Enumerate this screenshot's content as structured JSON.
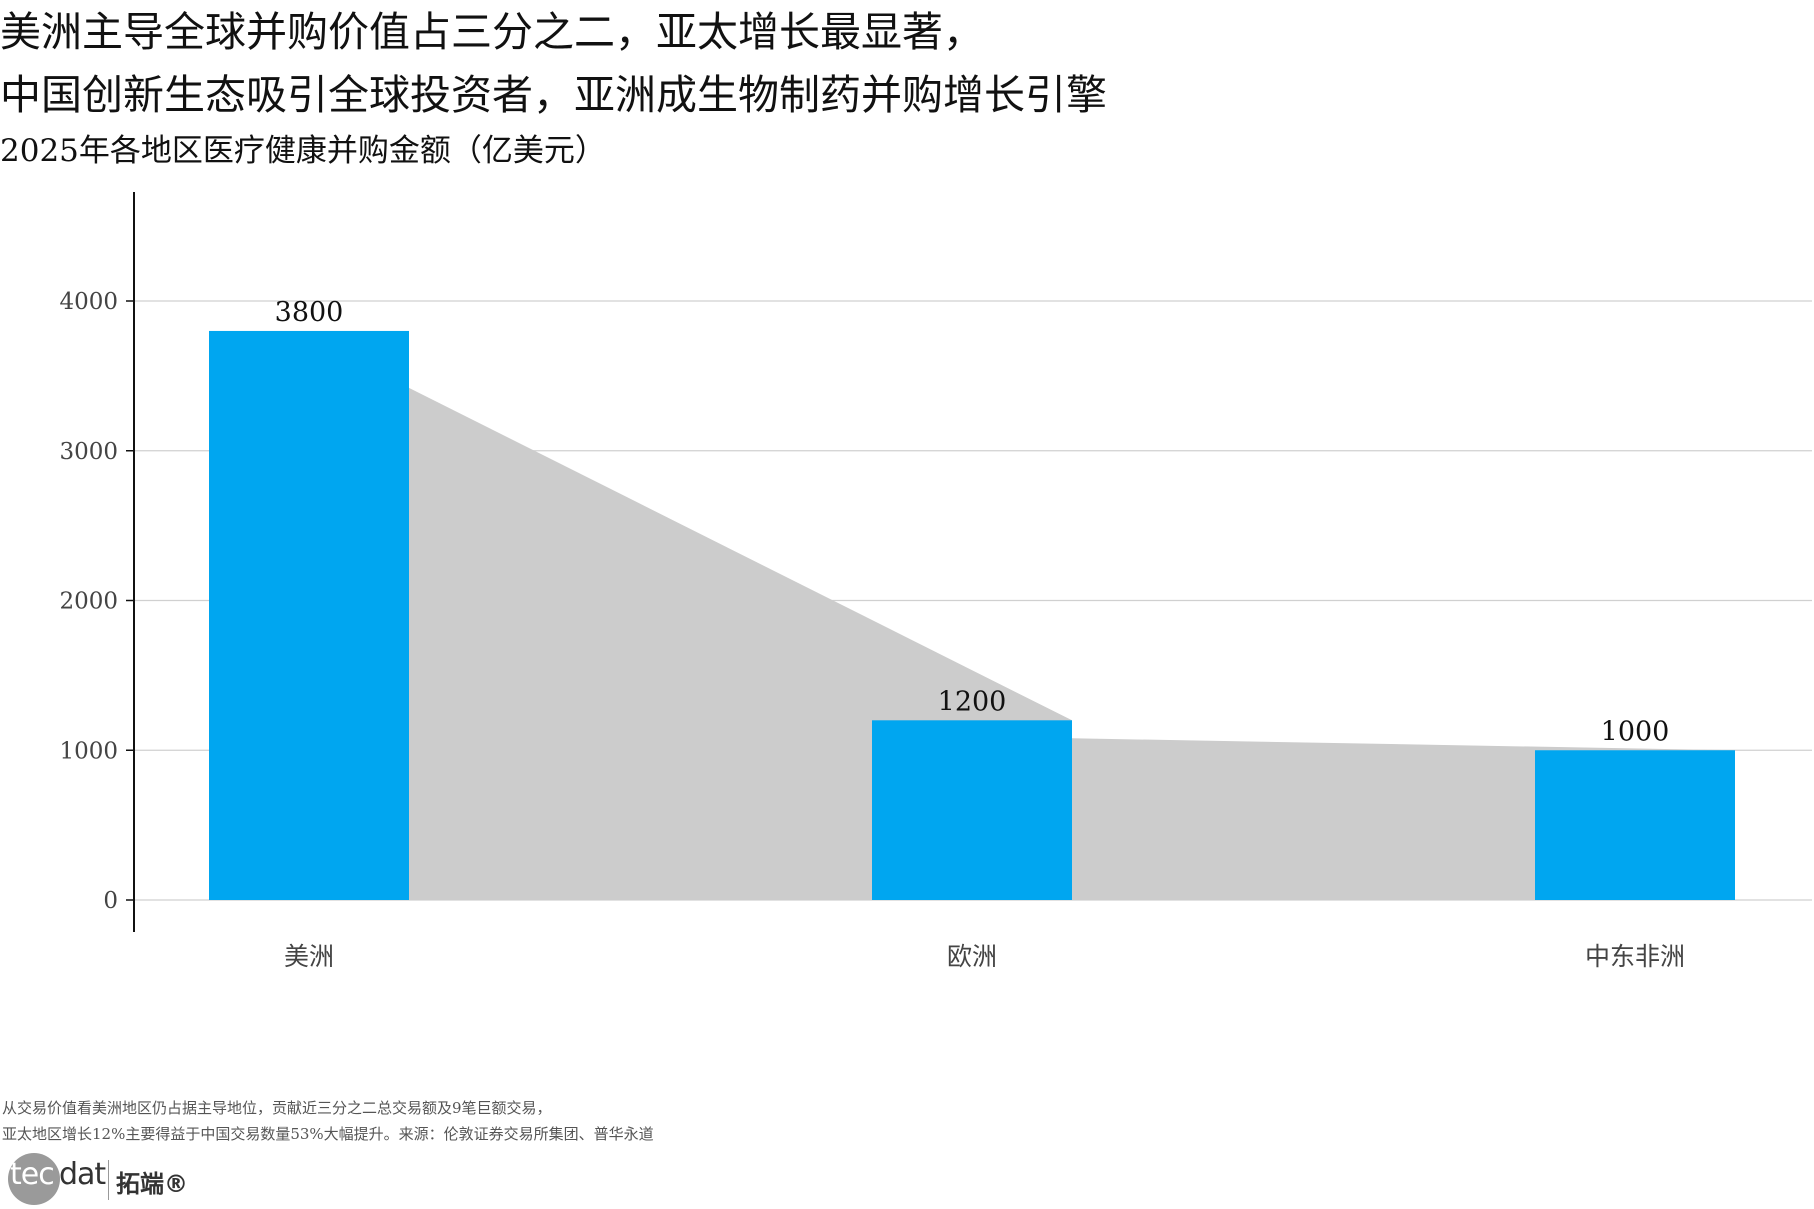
{
  "chart_data": {
    "type": "bar",
    "title_lines": [
      "美洲主导全球并购价值占三分之二，亚太增长最显著，",
      "中国创新生态吸引全球投资者，亚洲成生物制药并购增长引擎"
    ],
    "subtitle": "2025年各地区医疗健康并购金额（亿美元）",
    "categories": [
      "美洲",
      "欧洲",
      "中东非洲"
    ],
    "values": [
      3800,
      1200,
      1000
    ],
    "data_labels": [
      "3800",
      "1200",
      "1000"
    ],
    "y_ticks": [
      0,
      1000,
      2000,
      3000,
      4000
    ],
    "y_tick_labels": [
      "0",
      "1000",
      "2000",
      "3000",
      "4000"
    ],
    "ylim": [
      0,
      4700
    ],
    "xlabel": "",
    "ylabel": "",
    "grid": "horizontal",
    "bar_color": "#00A6F0",
    "connector_color": "#CCCCCC"
  },
  "footnotes": [
    "从交易价值看美洲地区仍占据主导地位，贡献近三分之二总交易额及9笔巨额交易，",
    "亚太地区增长12%主要得益于中国交易数量53%大幅提升。来源：伦敦证券交易所集团、普华永道"
  ],
  "logo": {
    "tec": "tec",
    "dat": "dat",
    "brand_cn": "拓端®"
  }
}
